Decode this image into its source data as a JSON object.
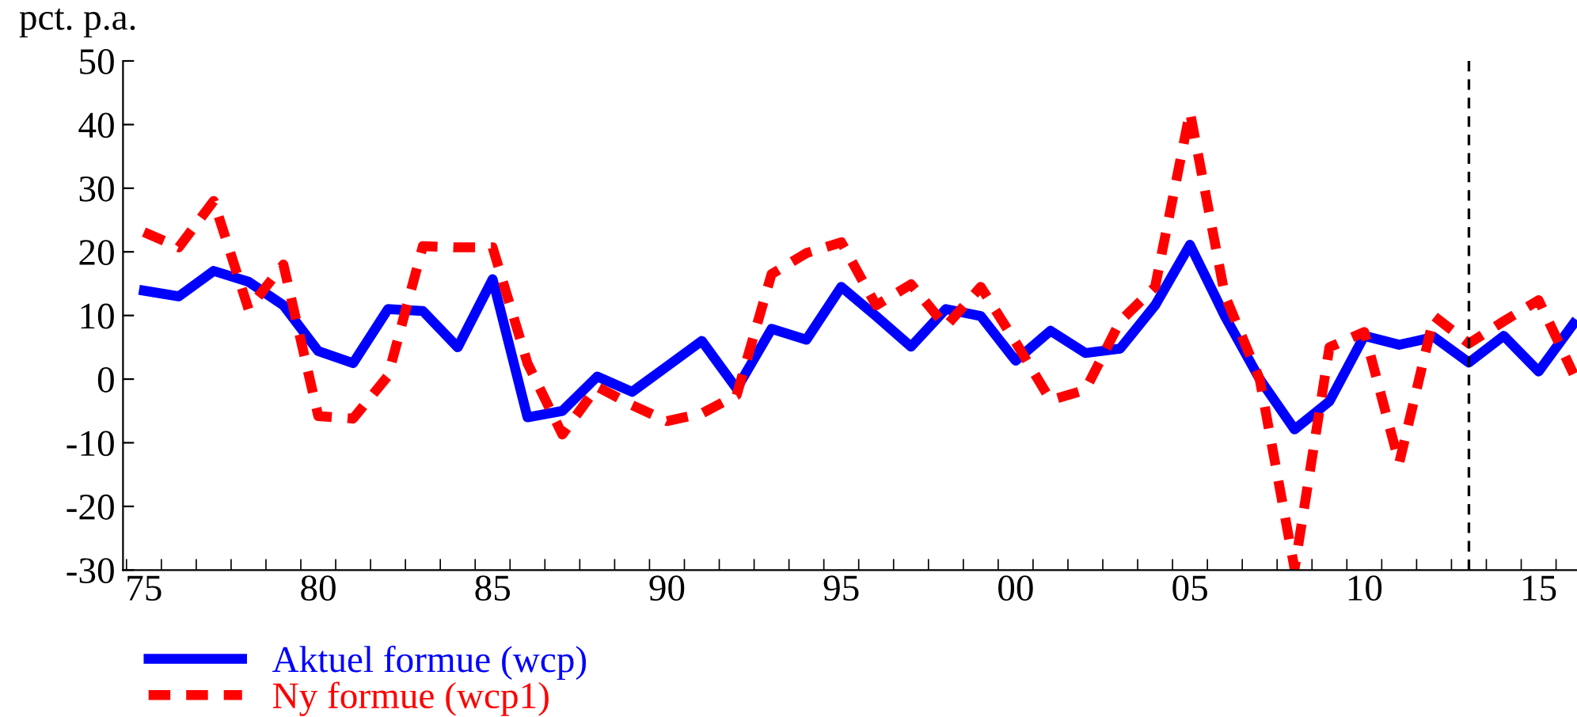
{
  "chart_data": {
    "type": "line",
    "ylabel": "pct. p.a.",
    "x": [
      1975,
      1976,
      1977,
      1978,
      1979,
      1980,
      1981,
      1982,
      1983,
      1984,
      1985,
      1986,
      1987,
      1988,
      1989,
      1990,
      1991,
      1992,
      1993,
      1994,
      1995,
      1996,
      1997,
      1998,
      1999,
      2000,
      2001,
      2002,
      2003,
      2004,
      2005,
      2006,
      2007,
      2008,
      2009,
      2010,
      2011,
      2012,
      2013,
      2014,
      2015,
      2016
    ],
    "series": [
      {
        "name": "Aktuel formue (wcp)",
        "color": "#0000ff",
        "line_style": "solid",
        "values": [
          13.9,
          13,
          17,
          15.3,
          11.6,
          4.4,
          2.5,
          11,
          10.7,
          5,
          15.7,
          -6,
          -5,
          0.4,
          -2,
          2,
          6,
          -1.5,
          7.9,
          6.2,
          14.5,
          9.9,
          5.1,
          11,
          9.9,
          2.9,
          7.6,
          4.1,
          4.8,
          11.6,
          21.1,
          9.9,
          0,
          -7.9,
          -3.5,
          6.8,
          5.4,
          6.6,
          2.6,
          6.8,
          1.2,
          8.7
        ]
      },
      {
        "name": "Ny formue (wcp1)",
        "color": "#ff0000",
        "line_style": "dashed",
        "values": [
          23.1,
          20.7,
          28,
          11,
          18,
          -5.8,
          -6.2,
          0.5,
          20.9,
          20.7,
          20.7,
          2.5,
          -8.7,
          -1.2,
          -4.1,
          -6.6,
          -5.4,
          -2.5,
          16.5,
          19.8,
          21.5,
          11.6,
          14.9,
          8.3,
          14.5,
          5.8,
          -3.3,
          -1.7,
          9.1,
          14.5,
          42,
          13.2,
          0,
          -29.8,
          5,
          7.4,
          -13.2,
          9.9,
          5.6,
          9.1,
          12.4,
          0.8
        ]
      }
    ],
    "xlim": [
      1974.4,
      2016.1
    ],
    "xticks": [
      {
        "value": 1975,
        "label": "75"
      },
      {
        "value": 1980,
        "label": "80"
      },
      {
        "value": 1985,
        "label": "85"
      },
      {
        "value": 1990,
        "label": "90"
      },
      {
        "value": 1995,
        "label": "95"
      },
      {
        "value": 2000,
        "label": "00"
      },
      {
        "value": 2005,
        "label": "05"
      },
      {
        "value": 2010,
        "label": "10"
      },
      {
        "value": 2015,
        "label": "15"
      },
      {
        "value": 1974.5,
        "label": null
      },
      {
        "value": 1975.5,
        "label": null
      },
      {
        "value": 1976.5,
        "label": null
      },
      {
        "value": 1977.5,
        "label": null
      },
      {
        "value": 1978.5,
        "label": null
      },
      {
        "value": 1979.5,
        "label": null
      },
      {
        "value": 1980.5,
        "label": null
      },
      {
        "value": 1981.5,
        "label": null
      },
      {
        "value": 1982.5,
        "label": null
      },
      {
        "value": 1983.5,
        "label": null
      },
      {
        "value": 1984.5,
        "label": null
      },
      {
        "value": 1985.5,
        "label": null
      },
      {
        "value": 1986.5,
        "label": null
      },
      {
        "value": 1987.5,
        "label": null
      },
      {
        "value": 1988.5,
        "label": null
      },
      {
        "value": 1989.5,
        "label": null
      },
      {
        "value": 1990.5,
        "label": null
      },
      {
        "value": 1991.5,
        "label": null
      },
      {
        "value": 1992.5,
        "label": null
      },
      {
        "value": 1993.5,
        "label": null
      },
      {
        "value": 1994.5,
        "label": null
      },
      {
        "value": 1995.5,
        "label": null
      },
      {
        "value": 1996.5,
        "label": null
      },
      {
        "value": 1997.5,
        "label": null
      },
      {
        "value": 1998.5,
        "label": null
      },
      {
        "value": 1999.5,
        "label": null
      },
      {
        "value": 2000.5,
        "label": null
      },
      {
        "value": 2001.5,
        "label": null
      },
      {
        "value": 2002.5,
        "label": null
      },
      {
        "value": 2003.5,
        "label": null
      },
      {
        "value": 2004.5,
        "label": null
      },
      {
        "value": 2005.5,
        "label": null
      },
      {
        "value": 2006.5,
        "label": null
      },
      {
        "value": 2007.5,
        "label": null
      },
      {
        "value": 2008.5,
        "label": null
      },
      {
        "value": 2009.5,
        "label": null
      },
      {
        "value": 2010.5,
        "label": null
      },
      {
        "value": 2011.5,
        "label": null
      },
      {
        "value": 2012.5,
        "label": null
      },
      {
        "value": 2013.5,
        "label": null
      },
      {
        "value": 2014.5,
        "label": null
      },
      {
        "value": 2015.5,
        "label": null
      }
    ],
    "ylim": [
      -30,
      50
    ],
    "yticks": [
      -30,
      -20,
      -10,
      0,
      10,
      20,
      30,
      40,
      50
    ],
    "ref_lines": [
      {
        "axis": "x",
        "value": 2013,
        "color": "#000000",
        "line_style": "dashed"
      }
    ],
    "grid": false,
    "legend": "bottom left"
  }
}
